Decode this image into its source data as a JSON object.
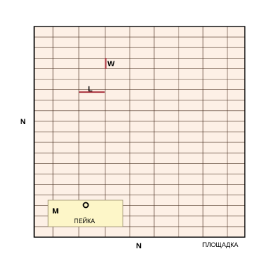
{
  "labels": {
    "west_axis": "N",
    "bottom_axis": "N",
    "area_name": "ПЛОЩАДКА",
    "bench_name": "ПЕЙКА",
    "marker_m": "M",
    "marker_w": "W",
    "marker_l": "L"
  },
  "colors": {
    "background": "#fdf0e6",
    "grid_line": "#4a3020",
    "border": "#000000",
    "bench_fill": "#fdf6c8",
    "bench_border": "#9a9070",
    "wall_mark": "#b0404a",
    "ring_stroke": "#000000"
  },
  "icons": {
    "ring": "circle-ring-icon",
    "wall_w": "wall-segment-icon",
    "wall_l": "wall-segment-icon"
  }
}
